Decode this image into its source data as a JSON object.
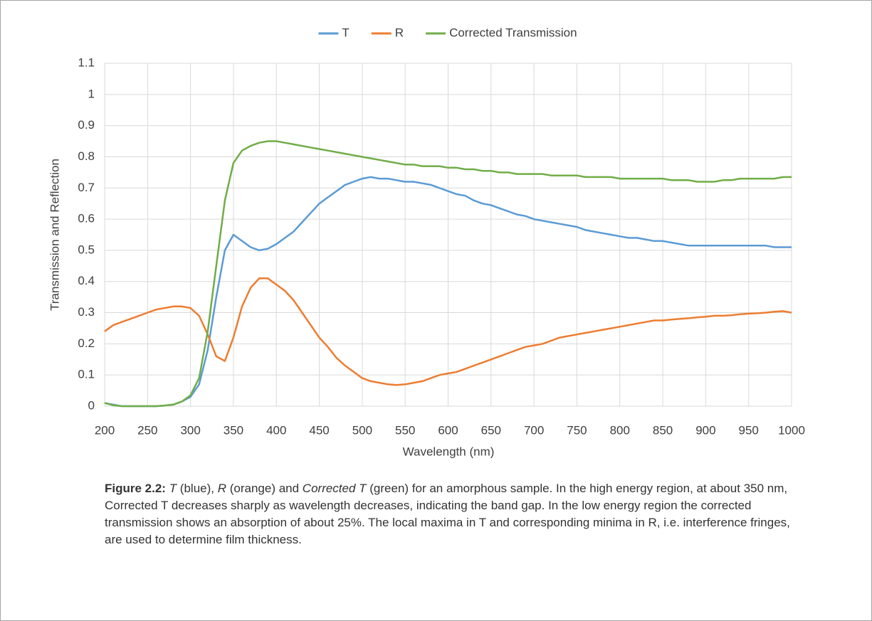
{
  "chart_data": {
    "type": "line",
    "x_label": "Wavelength (nm)",
    "y_label": "Transmission and Reflection",
    "xlim": [
      200,
      1000
    ],
    "xticks": [
      200,
      250,
      300,
      350,
      400,
      450,
      500,
      550,
      600,
      650,
      700,
      750,
      800,
      850,
      900,
      950,
      1000
    ],
    "ylim": [
      0,
      1.1
    ],
    "yticks": [
      0,
      0.1,
      0.2,
      0.3,
      0.4,
      0.5,
      0.6,
      0.7,
      0.8,
      0.9,
      1,
      1.1
    ],
    "grid": true,
    "legend": "top",
    "x": [
      200,
      210,
      220,
      230,
      240,
      250,
      260,
      270,
      280,
      290,
      300,
      310,
      320,
      330,
      340,
      350,
      360,
      370,
      380,
      390,
      400,
      410,
      420,
      430,
      440,
      450,
      460,
      470,
      480,
      490,
      500,
      510,
      520,
      530,
      540,
      550,
      560,
      570,
      580,
      590,
      600,
      610,
      620,
      630,
      640,
      650,
      660,
      670,
      680,
      690,
      700,
      710,
      720,
      730,
      740,
      750,
      760,
      770,
      780,
      790,
      800,
      810,
      820,
      830,
      840,
      850,
      860,
      870,
      880,
      890,
      900,
      910,
      920,
      930,
      940,
      950,
      960,
      970,
      980,
      990,
      1000
    ],
    "series": [
      {
        "name": "T",
        "color": "#5b9bd5",
        "values": [
          0.01,
          0.005,
          0,
          0,
          0,
          0,
          0,
          0.002,
          0.005,
          0.015,
          0.03,
          0.07,
          0.18,
          0.35,
          0.5,
          0.55,
          0.53,
          0.51,
          0.5,
          0.505,
          0.52,
          0.54,
          0.56,
          0.59,
          0.62,
          0.65,
          0.67,
          0.69,
          0.71,
          0.72,
          0.73,
          0.735,
          0.73,
          0.73,
          0.725,
          0.72,
          0.72,
          0.715,
          0.71,
          0.7,
          0.69,
          0.68,
          0.675,
          0.66,
          0.65,
          0.645,
          0.635,
          0.625,
          0.615,
          0.61,
          0.6,
          0.595,
          0.59,
          0.585,
          0.58,
          0.575,
          0.565,
          0.56,
          0.555,
          0.55,
          0.545,
          0.54,
          0.54,
          0.535,
          0.53,
          0.53,
          0.525,
          0.52,
          0.515,
          0.515,
          0.515,
          0.515,
          0.515,
          0.515,
          0.515,
          0.515,
          0.515,
          0.515,
          0.51,
          0.51,
          0.51
        ]
      },
      {
        "name": "R",
        "color": "#ed7d31",
        "values": [
          0.24,
          0.26,
          0.27,
          0.28,
          0.29,
          0.3,
          0.31,
          0.315,
          0.32,
          0.32,
          0.315,
          0.29,
          0.23,
          0.16,
          0.145,
          0.22,
          0.32,
          0.38,
          0.41,
          0.41,
          0.39,
          0.37,
          0.34,
          0.3,
          0.26,
          0.22,
          0.19,
          0.155,
          0.13,
          0.11,
          0.09,
          0.08,
          0.075,
          0.07,
          0.068,
          0.07,
          0.075,
          0.08,
          0.09,
          0.1,
          0.105,
          0.11,
          0.12,
          0.13,
          0.14,
          0.15,
          0.16,
          0.17,
          0.18,
          0.19,
          0.195,
          0.2,
          0.21,
          0.22,
          0.225,
          0.23,
          0.235,
          0.24,
          0.245,
          0.25,
          0.255,
          0.26,
          0.265,
          0.27,
          0.275,
          0.275,
          0.278,
          0.28,
          0.282,
          0.285,
          0.287,
          0.29,
          0.29,
          0.292,
          0.295,
          0.297,
          0.298,
          0.3,
          0.303,
          0.305,
          0.3
        ]
      },
      {
        "name": "Corrected Transmission",
        "color": "#70ad47",
        "values": [
          0.01,
          0.003,
          0,
          0,
          0,
          0,
          0,
          0.002,
          0.005,
          0.015,
          0.035,
          0.09,
          0.24,
          0.45,
          0.66,
          0.78,
          0.82,
          0.835,
          0.845,
          0.85,
          0.85,
          0.845,
          0.84,
          0.835,
          0.83,
          0.825,
          0.82,
          0.815,
          0.81,
          0.805,
          0.8,
          0.795,
          0.79,
          0.785,
          0.78,
          0.775,
          0.775,
          0.77,
          0.77,
          0.77,
          0.765,
          0.765,
          0.76,
          0.76,
          0.755,
          0.755,
          0.75,
          0.75,
          0.745,
          0.745,
          0.745,
          0.745,
          0.74,
          0.74,
          0.74,
          0.74,
          0.735,
          0.735,
          0.735,
          0.735,
          0.73,
          0.73,
          0.73,
          0.73,
          0.73,
          0.73,
          0.725,
          0.725,
          0.725,
          0.72,
          0.72,
          0.72,
          0.725,
          0.725,
          0.73,
          0.73,
          0.73,
          0.73,
          0.73,
          0.735,
          0.735
        ]
      }
    ]
  },
  "caption": [
    {
      "text": "Figure 2.2:",
      "style": "bold"
    },
    {
      "text": " T",
      "style": "italic"
    },
    {
      "text": " (blue), ",
      "style": "normal"
    },
    {
      "text": "R",
      "style": "italic"
    },
    {
      "text": " (orange) and ",
      "style": "normal"
    },
    {
      "text": "Corrected T",
      "style": "italic"
    },
    {
      "text": " (green) for an amorphous sample. In the high energy region, at about 350 nm, Corrected T decreases sharply as wavelength decreases, indicating the band gap. In the low energy region the corrected transmission shows an absorption of about 25%. The local maxima in T and corresponding minima in R, i.e. interference fringes, are used to determine film thickness.",
      "style": "normal"
    }
  ]
}
